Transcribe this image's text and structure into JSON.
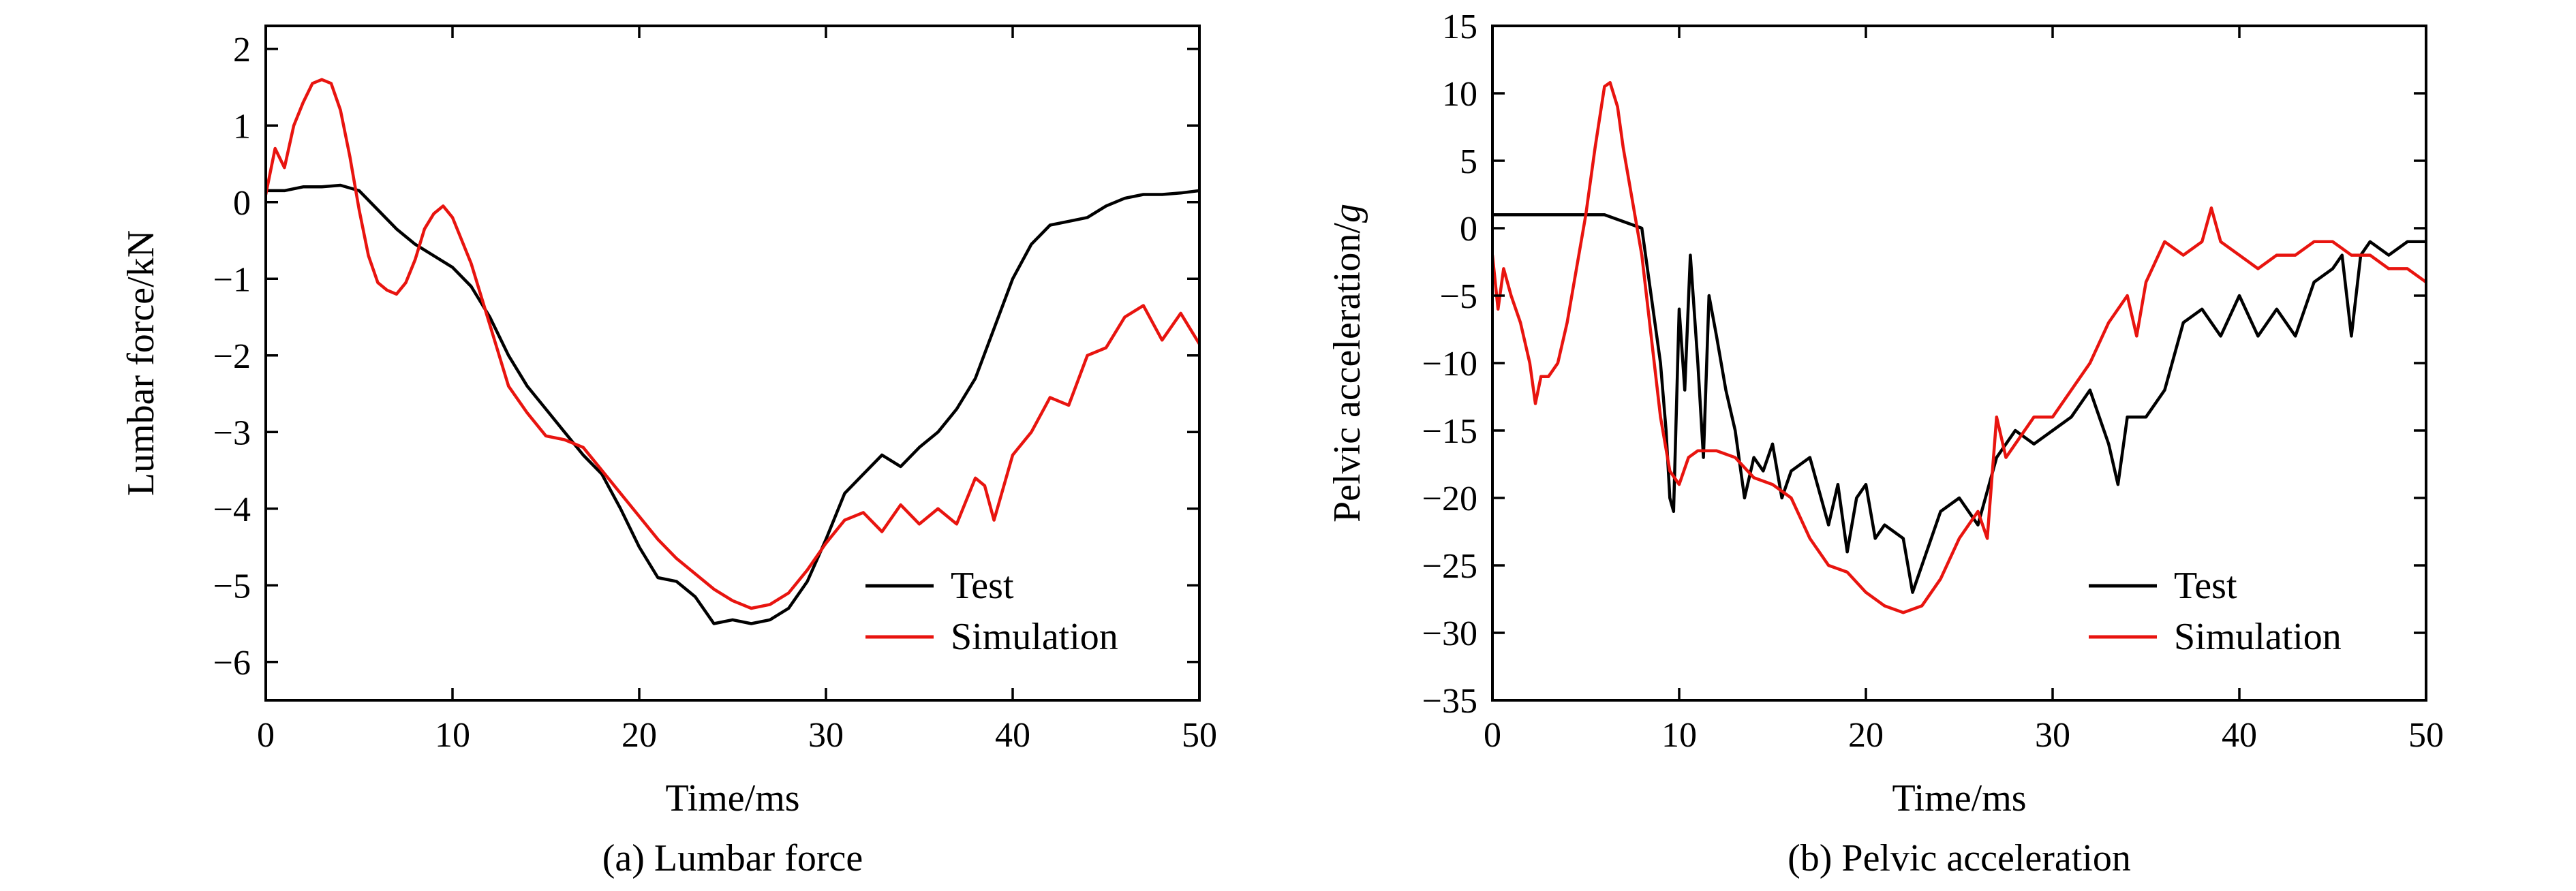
{
  "chart_data": [
    {
      "type": "line",
      "caption": "(a) Lumbar force",
      "xlabel": "Time/ms",
      "ylabel": "Lumbar force/kN",
      "xlim": [
        0,
        50
      ],
      "ylim": [
        -6.5,
        2.3
      ],
      "xticks": [
        0,
        10,
        20,
        30,
        40,
        50
      ],
      "yticks": [
        2,
        1,
        0,
        -1,
        -2,
        -3,
        -4,
        -5,
        -6
      ],
      "ytick_labels": [
        "2",
        "1",
        "0",
        "−1",
        "−2",
        "−3",
        "−4",
        "−5",
        "−6"
      ],
      "legend_position": "bottom-right",
      "series": [
        {
          "name": "Test",
          "color": "#000000",
          "points": [
            [
              0,
              0.15
            ],
            [
              1,
              0.15
            ],
            [
              2,
              0.2
            ],
            [
              3,
              0.2
            ],
            [
              4,
              0.22
            ],
            [
              5,
              0.15
            ],
            [
              6,
              -0.1
            ],
            [
              7,
              -0.35
            ],
            [
              8,
              -0.55
            ],
            [
              9,
              -0.7
            ],
            [
              10,
              -0.85
            ],
            [
              11,
              -1.1
            ],
            [
              12,
              -1.5
            ],
            [
              13,
              -2.0
            ],
            [
              14,
              -2.4
            ],
            [
              15,
              -2.7
            ],
            [
              16,
              -3.0
            ],
            [
              17,
              -3.3
            ],
            [
              18,
              -3.55
            ],
            [
              19,
              -4.0
            ],
            [
              20,
              -4.5
            ],
            [
              21,
              -4.9
            ],
            [
              22,
              -4.95
            ],
            [
              23,
              -5.15
            ],
            [
              24,
              -5.5
            ],
            [
              25,
              -5.45
            ],
            [
              26,
              -5.5
            ],
            [
              27,
              -5.45
            ],
            [
              28,
              -5.3
            ],
            [
              29,
              -4.95
            ],
            [
              30,
              -4.4
            ],
            [
              31,
              -3.8
            ],
            [
              32,
              -3.55
            ],
            [
              33,
              -3.3
            ],
            [
              34,
              -3.45
            ],
            [
              35,
              -3.2
            ],
            [
              36,
              -3.0
            ],
            [
              37,
              -2.7
            ],
            [
              38,
              -2.3
            ],
            [
              39,
              -1.65
            ],
            [
              40,
              -1.0
            ],
            [
              41,
              -0.55
            ],
            [
              42,
              -0.3
            ],
            [
              43,
              -0.25
            ],
            [
              44,
              -0.2
            ],
            [
              45,
              -0.05
            ],
            [
              46,
              0.05
            ],
            [
              47,
              0.1
            ],
            [
              48,
              0.1
            ],
            [
              49,
              0.12
            ],
            [
              50,
              0.15
            ]
          ]
        },
        {
          "name": "Simulation",
          "color": "#e8140f",
          "points": [
            [
              0,
              0.1
            ],
            [
              0.5,
              0.7
            ],
            [
              1,
              0.45
            ],
            [
              1.5,
              1.0
            ],
            [
              2,
              1.3
            ],
            [
              2.5,
              1.55
            ],
            [
              3,
              1.6
            ],
            [
              3.5,
              1.55
            ],
            [
              4,
              1.2
            ],
            [
              4.5,
              0.6
            ],
            [
              5,
              -0.1
            ],
            [
              5.5,
              -0.7
            ],
            [
              6,
              -1.05
            ],
            [
              6.5,
              -1.15
            ],
            [
              7,
              -1.2
            ],
            [
              7.5,
              -1.05
            ],
            [
              8,
              -0.75
            ],
            [
              8.5,
              -0.35
            ],
            [
              9,
              -0.15
            ],
            [
              9.5,
              -0.05
            ],
            [
              10,
              -0.2
            ],
            [
              11,
              -0.8
            ],
            [
              12,
              -1.6
            ],
            [
              13,
              -2.4
            ],
            [
              14,
              -2.75
            ],
            [
              15,
              -3.05
            ],
            [
              16,
              -3.1
            ],
            [
              17,
              -3.2
            ],
            [
              18,
              -3.5
            ],
            [
              19,
              -3.8
            ],
            [
              20,
              -4.1
            ],
            [
              21,
              -4.4
            ],
            [
              22,
              -4.65
            ],
            [
              23,
              -4.85
            ],
            [
              24,
              -5.05
            ],
            [
              25,
              -5.2
            ],
            [
              26,
              -5.3
            ],
            [
              27,
              -5.25
            ],
            [
              28,
              -5.1
            ],
            [
              29,
              -4.8
            ],
            [
              30,
              -4.45
            ],
            [
              31,
              -4.15
            ],
            [
              32,
              -4.05
            ],
            [
              33,
              -4.3
            ],
            [
              34,
              -3.95
            ],
            [
              35,
              -4.2
            ],
            [
              36,
              -4.0
            ],
            [
              37,
              -4.2
            ],
            [
              38,
              -3.6
            ],
            [
              38.5,
              -3.7
            ],
            [
              39,
              -4.15
            ],
            [
              40,
              -3.3
            ],
            [
              41,
              -3.0
            ],
            [
              42,
              -2.55
            ],
            [
              43,
              -2.65
            ],
            [
              44,
              -2.0
            ],
            [
              45,
              -1.9
            ],
            [
              46,
              -1.5
            ],
            [
              47,
              -1.35
            ],
            [
              48,
              -1.8
            ],
            [
              49,
              -1.45
            ],
            [
              50,
              -1.85
            ]
          ]
        }
      ]
    },
    {
      "type": "line",
      "caption": "(b) Pelvic acceleration",
      "xlabel": "Time/ms",
      "ylabel": "Pelvic acceleration/",
      "ylabel_italic": "g",
      "xlim": [
        0,
        50
      ],
      "ylim": [
        -35,
        15
      ],
      "xticks": [
        0,
        10,
        20,
        30,
        40,
        50
      ],
      "yticks": [
        15,
        10,
        5,
        0,
        -5,
        -10,
        -15,
        -20,
        -25,
        -30,
        -35
      ],
      "ytick_labels": [
        "15",
        "10",
        "5",
        "0",
        "−5",
        "−10",
        "−15",
        "−20",
        "−25",
        "−30",
        "−35"
      ],
      "legend_position": "bottom-right",
      "series": [
        {
          "name": "Test",
          "color": "#000000",
          "points": [
            [
              0,
              1
            ],
            [
              2,
              1
            ],
            [
              4,
              1
            ],
            [
              6,
              1
            ],
            [
              7,
              0.5
            ],
            [
              8,
              0
            ],
            [
              8.5,
              -5
            ],
            [
              9,
              -10
            ],
            [
              9.3,
              -15
            ],
            [
              9.5,
              -20
            ],
            [
              9.7,
              -21
            ],
            [
              10,
              -6
            ],
            [
              10.3,
              -12
            ],
            [
              10.6,
              -2
            ],
            [
              11,
              -10
            ],
            [
              11.3,
              -17
            ],
            [
              11.6,
              -5
            ],
            [
              12,
              -8
            ],
            [
              12.5,
              -12
            ],
            [
              13,
              -15
            ],
            [
              13.5,
              -20
            ],
            [
              14,
              -17
            ],
            [
              14.5,
              -18
            ],
            [
              15,
              -16
            ],
            [
              15.5,
              -20
            ],
            [
              16,
              -18
            ],
            [
              17,
              -17
            ],
            [
              18,
              -22
            ],
            [
              18.5,
              -19
            ],
            [
              19,
              -24
            ],
            [
              19.5,
              -20
            ],
            [
              20,
              -19
            ],
            [
              20.5,
              -23
            ],
            [
              21,
              -22
            ],
            [
              22,
              -23
            ],
            [
              22.5,
              -27
            ],
            [
              23,
              -25
            ],
            [
              24,
              -21
            ],
            [
              25,
              -20
            ],
            [
              26,
              -22
            ],
            [
              27,
              -17
            ],
            [
              28,
              -15
            ],
            [
              29,
              -16
            ],
            [
              30,
              -15
            ],
            [
              31,
              -14
            ],
            [
              32,
              -12
            ],
            [
              33,
              -16
            ],
            [
              33.5,
              -19
            ],
            [
              34,
              -14
            ],
            [
              35,
              -14
            ],
            [
              36,
              -12
            ],
            [
              37,
              -7
            ],
            [
              38,
              -6
            ],
            [
              39,
              -8
            ],
            [
              40,
              -5
            ],
            [
              41,
              -8
            ],
            [
              42,
              -6
            ],
            [
              43,
              -8
            ],
            [
              44,
              -4
            ],
            [
              45,
              -3
            ],
            [
              45.5,
              -2
            ],
            [
              46,
              -8
            ],
            [
              46.5,
              -2
            ],
            [
              47,
              -1
            ],
            [
              48,
              -2
            ],
            [
              49,
              -1
            ],
            [
              50,
              -1
            ]
          ]
        },
        {
          "name": "Simulation",
          "color": "#e8140f",
          "points": [
            [
              0,
              -2
            ],
            [
              0.3,
              -6
            ],
            [
              0.6,
              -3
            ],
            [
              1,
              -5
            ],
            [
              1.5,
              -7
            ],
            [
              2,
              -10
            ],
            [
              2.3,
              -13
            ],
            [
              2.6,
              -11
            ],
            [
              3,
              -11
            ],
            [
              3.5,
              -10
            ],
            [
              4,
              -7
            ],
            [
              4.5,
              -3
            ],
            [
              5,
              1
            ],
            [
              5.5,
              6
            ],
            [
              6,
              10.5
            ],
            [
              6.3,
              10.8
            ],
            [
              6.7,
              9
            ],
            [
              7,
              6
            ],
            [
              7.5,
              2
            ],
            [
              8,
              -2
            ],
            [
              8.5,
              -8
            ],
            [
              9,
              -14
            ],
            [
              9.5,
              -18
            ],
            [
              10,
              -19
            ],
            [
              10.5,
              -17
            ],
            [
              11,
              -16.5
            ],
            [
              12,
              -16.5
            ],
            [
              13,
              -17
            ],
            [
              14,
              -18.5
            ],
            [
              15,
              -19
            ],
            [
              16,
              -20
            ],
            [
              17,
              -23
            ],
            [
              18,
              -25
            ],
            [
              19,
              -25.5
            ],
            [
              20,
              -27
            ],
            [
              21,
              -28
            ],
            [
              22,
              -28.5
            ],
            [
              23,
              -28
            ],
            [
              24,
              -26
            ],
            [
              25,
              -23
            ],
            [
              26,
              -21
            ],
            [
              26.5,
              -23
            ],
            [
              27,
              -14
            ],
            [
              27.5,
              -17
            ],
            [
              28,
              -16
            ],
            [
              29,
              -14
            ],
            [
              30,
              -14
            ],
            [
              31,
              -12
            ],
            [
              32,
              -10
            ],
            [
              33,
              -7
            ],
            [
              34,
              -5
            ],
            [
              34.5,
              -8
            ],
            [
              35,
              -4
            ],
            [
              36,
              -1
            ],
            [
              37,
              -2
            ],
            [
              38,
              -1
            ],
            [
              38.5,
              1.5
            ],
            [
              39,
              -1
            ],
            [
              40,
              -2
            ],
            [
              41,
              -3
            ],
            [
              42,
              -2
            ],
            [
              43,
              -2
            ],
            [
              44,
              -1
            ],
            [
              45,
              -1
            ],
            [
              46,
              -2
            ],
            [
              47,
              -2
            ],
            [
              48,
              -3
            ],
            [
              49,
              -3
            ],
            [
              50,
              -4
            ]
          ]
        }
      ]
    }
  ]
}
